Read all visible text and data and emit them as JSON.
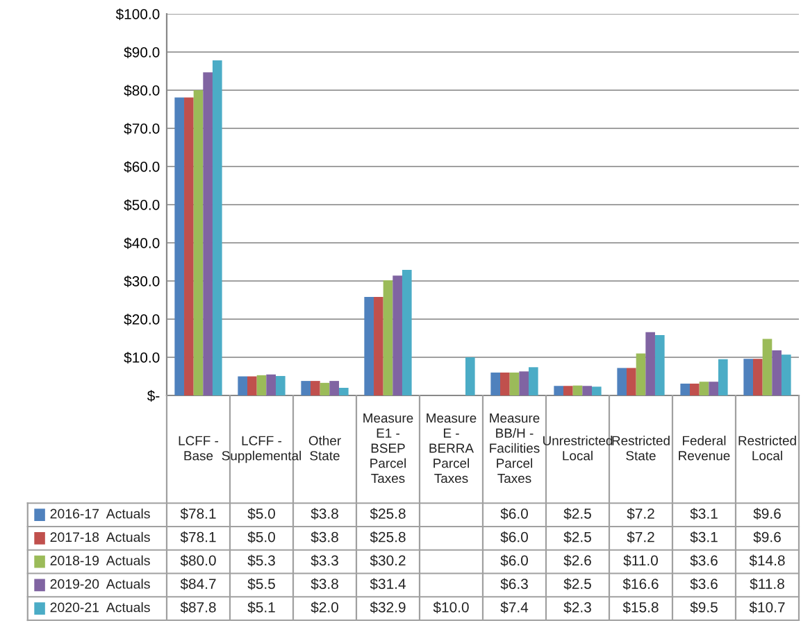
{
  "chart_data": {
    "type": "bar",
    "categories": [
      "LCFF - Base",
      "LCFF - Supplemental",
      "Other State",
      "Measure E1 - BSEP Parcel Taxes",
      "Measure E - BERRA Parcel Taxes",
      "Measure BB/H - Facilities Parcel Taxes",
      "Unrestricted Local",
      "Restricted State",
      "Federal Revenue",
      "Restricted Local"
    ],
    "series": [
      {
        "name": "2016-17  Actuals",
        "color": "#4f81bd",
        "values": [
          78.1,
          5.0,
          3.8,
          25.8,
          null,
          6.0,
          2.5,
          7.2,
          3.1,
          9.6
        ],
        "value_labels": [
          "$78.1",
          "$5.0",
          "$3.8",
          "$25.8",
          null,
          "$6.0",
          "$2.5",
          "$7.2",
          "$3.1",
          "$9.6"
        ]
      },
      {
        "name": "2017-18  Actuals",
        "color": "#c0504d",
        "values": [
          78.1,
          5.0,
          3.8,
          25.8,
          null,
          6.0,
          2.5,
          7.2,
          3.1,
          9.6
        ],
        "value_labels": [
          "$78.1",
          "$5.0",
          "$3.8",
          "$25.8",
          null,
          "$6.0",
          "$2.5",
          "$7.2",
          "$3.1",
          "$9.6"
        ]
      },
      {
        "name": "2018-19  Actuals",
        "color": "#9bbb59",
        "values": [
          80.0,
          5.3,
          3.3,
          30.2,
          null,
          6.0,
          2.6,
          11.0,
          3.6,
          14.8
        ],
        "value_labels": [
          "$80.0",
          "$5.3",
          "$3.3",
          "$30.2",
          null,
          "$6.0",
          "$2.6",
          "$11.0",
          "$3.6",
          "$14.8"
        ]
      },
      {
        "name": "2019-20  Actuals",
        "color": "#8064a2",
        "values": [
          84.7,
          5.5,
          3.8,
          31.4,
          null,
          6.3,
          2.5,
          16.6,
          3.6,
          11.8
        ],
        "value_labels": [
          "$84.7",
          "$5.5",
          "$3.8",
          "$31.4",
          null,
          "$6.3",
          "$2.5",
          "$16.6",
          "$3.6",
          "$11.8"
        ]
      },
      {
        "name": "2020-21  Actuals",
        "color": "#4bacc6",
        "values": [
          87.8,
          5.1,
          2.0,
          32.9,
          10.0,
          7.4,
          2.3,
          15.8,
          9.5,
          10.7
        ],
        "value_labels": [
          "$87.8",
          "$5.1",
          "$2.0",
          "$32.9",
          "$10.0",
          "$7.4",
          "$2.3",
          "$15.8",
          "$9.5",
          "$10.7"
        ]
      }
    ],
    "ylim": [
      0,
      100
    ],
    "yticks": [
      {
        "value": 0,
        "label": "$-"
      },
      {
        "value": 10,
        "label": "$10.0"
      },
      {
        "value": 20,
        "label": "$20.0"
      },
      {
        "value": 30,
        "label": "$30.0"
      },
      {
        "value": 40,
        "label": "$40.0"
      },
      {
        "value": 50,
        "label": "$50.0"
      },
      {
        "value": 60,
        "label": "$60.0"
      },
      {
        "value": 70,
        "label": "$70.0"
      },
      {
        "value": 80,
        "label": "$80.0"
      },
      {
        "value": 90,
        "label": "$90.0"
      },
      {
        "value": 100,
        "label": "$100.0"
      }
    ],
    "grid": "y",
    "legend": "bottom"
  }
}
